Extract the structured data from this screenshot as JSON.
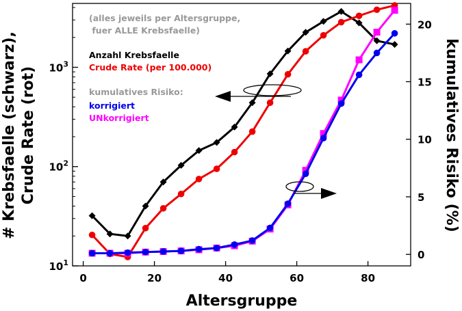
{
  "chart_data": {
    "type": "line",
    "xlabel": "Altersgruppe",
    "ylabel_left_line1": "# Krebsfaelle (schwarz),",
    "ylabel_left_line2": "Crude Rate (rot)",
    "ylabel_right": "kumulatives Risiko (%)",
    "xlim": [
      -3,
      92
    ],
    "ylim_left": [
      10,
      4400
    ],
    "yscale_left": "log",
    "ylim_right": [
      -1,
      21.8
    ],
    "x_ticks": [
      0,
      20,
      40,
      60,
      80
    ],
    "y_left_ticks": [
      {
        "value": 10,
        "base": "10",
        "exp": "1"
      },
      {
        "value": 100,
        "base": "10",
        "exp": "2"
      },
      {
        "value": 1000,
        "base": "10",
        "exp": "3"
      }
    ],
    "y_right_ticks": [
      0,
      5,
      10,
      15,
      20
    ],
    "x": [
      2.5,
      7.5,
      12.5,
      17.5,
      22.5,
      27.5,
      32.5,
      37.5,
      42.5,
      47.5,
      52.5,
      57.5,
      62.5,
      67.5,
      72.5,
      77.5,
      82.5,
      87.5
    ],
    "series": [
      {
        "axis": "left",
        "marker": "diamond",
        "color": "#000000",
        "values": [
          32,
          21,
          20,
          40,
          70,
          103,
          145,
          175,
          250,
          440,
          860,
          1460,
          2250,
          2900,
          3650,
          2800,
          1850,
          1700
        ]
      },
      {
        "axis": "left",
        "marker": "circle",
        "color": "#ee0000",
        "values": [
          20.5,
          13.2,
          12.3,
          24,
          38,
          53,
          75,
          95,
          140,
          225,
          440,
          850,
          1450,
          2100,
          2850,
          3300,
          3800,
          4200
        ]
      },
      {
        "axis": "right",
        "marker": "square",
        "color": "#ff00ff",
        "values": [
          0.1,
          0.1,
          0.1,
          0.2,
          0.25,
          0.3,
          0.4,
          0.55,
          0.75,
          1.15,
          2.2,
          4.3,
          7.3,
          10.5,
          13.4,
          16.9,
          19.3,
          21.2
        ]
      },
      {
        "axis": "right",
        "marker": "circle",
        "color": "#0000ee",
        "values": [
          0.1,
          0.1,
          0.15,
          0.2,
          0.25,
          0.3,
          0.45,
          0.55,
          0.85,
          1.2,
          2.3,
          4.4,
          7.0,
          10.1,
          13.1,
          15.6,
          17.5,
          19.2
        ]
      }
    ],
    "annotations": {
      "note_line1": "(alles jeweils per Altersgruppe,",
      "note_line2": " fuer ALLE Krebsfaelle)",
      "anzahl": "Anzahl Krebsfaelle",
      "crude": "Crude Rate (per 100.000)",
      "kum_header": "kumulatives Risiko:",
      "korrigiert": "korrigiert",
      "unkorrigiert": "UNkorrigiert"
    },
    "colors": {
      "note": "#999999",
      "black": "#000000",
      "red": "#ee0000",
      "blue": "#0000ee",
      "magenta": "#ff00ff"
    }
  }
}
